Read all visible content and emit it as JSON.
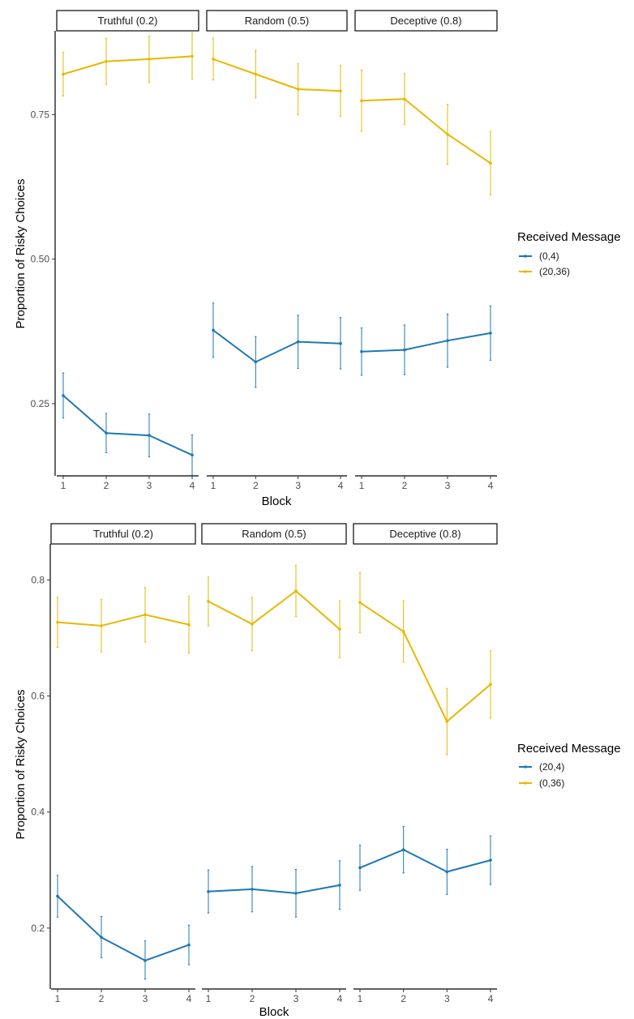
{
  "chart_data": [
    {
      "type": "line",
      "panels": [
        "Truthful (0.2)",
        "Random (0.5)",
        "Deceptive (0.8)"
      ],
      "x": [
        1,
        2,
        3,
        4
      ],
      "xlabel": "Block",
      "ylabel": "Proportion of Risky Choices",
      "yticks": [
        0.25,
        0.5,
        0.75
      ],
      "ytick_labels": [
        "0.25",
        "0.50",
        "0.75"
      ],
      "ylim": [
        0.125,
        0.895
      ],
      "legend_title": "Received Message",
      "legend_position": "right",
      "grid": false,
      "error_bars": true,
      "series": [
        {
          "name": "(0,4)",
          "color": "#1f77b4",
          "panels": [
            {
              "values": [
                0.264,
                0.199,
                0.195,
                0.161
              ],
              "lower": [
                0.225,
                0.165,
                0.158,
                0.126
              ],
              "upper": [
                0.303,
                0.233,
                0.232,
                0.196
              ]
            },
            {
              "values": [
                0.377,
                0.322,
                0.357,
                0.354
              ],
              "lower": [
                0.33,
                0.278,
                0.311,
                0.31
              ],
              "upper": [
                0.424,
                0.366,
                0.403,
                0.399
              ]
            },
            {
              "values": [
                0.34,
                0.343,
                0.359,
                0.372
              ],
              "lower": [
                0.299,
                0.3,
                0.313,
                0.325
              ],
              "upper": [
                0.381,
                0.386,
                0.405,
                0.419
              ]
            }
          ]
        },
        {
          "name": "(20,36)",
          "color": "#e6b800",
          "panels": [
            {
              "values": [
                0.82,
                0.842,
                0.846,
                0.851
              ],
              "lower": [
                0.782,
                0.802,
                0.806,
                0.811
              ],
              "upper": [
                0.858,
                0.882,
                0.886,
                0.891
              ]
            },
            {
              "values": [
                0.846,
                0.82,
                0.794,
                0.791
              ],
              "lower": [
                0.81,
                0.779,
                0.75,
                0.747
              ],
              "upper": [
                0.882,
                0.861,
                0.838,
                0.835
              ]
            },
            {
              "values": [
                0.774,
                0.777,
                0.716,
                0.666
              ],
              "lower": [
                0.721,
                0.733,
                0.664,
                0.611
              ],
              "upper": [
                0.827,
                0.821,
                0.768,
                0.721
              ]
            }
          ]
        }
      ]
    },
    {
      "type": "line",
      "panels": [
        "Truthful (0.2)",
        "Random (0.5)",
        "Deceptive (0.8)"
      ],
      "x": [
        1,
        2,
        3,
        4
      ],
      "xlabel": "Block",
      "ylabel": "Proportion of Risky Choices",
      "yticks": [
        0.2,
        0.4,
        0.6,
        0.8
      ],
      "ytick_labels": [
        "0.2",
        "0.4",
        "0.6",
        "0.8"
      ],
      "ylim": [
        0.095,
        0.862
      ],
      "legend_title": "Received Message",
      "legend_position": "right",
      "grid": false,
      "error_bars": true,
      "series": [
        {
          "name": "(20,4)",
          "color": "#1f77b4",
          "panels": [
            {
              "values": [
                0.255,
                0.184,
                0.144,
                0.171
              ],
              "lower": [
                0.219,
                0.149,
                0.112,
                0.137
              ],
              "upper": [
                0.291,
                0.22,
                0.178,
                0.205
              ]
            },
            {
              "values": [
                0.263,
                0.267,
                0.26,
                0.274
              ],
              "lower": [
                0.226,
                0.228,
                0.219,
                0.232
              ],
              "upper": [
                0.3,
                0.306,
                0.301,
                0.316
              ]
            },
            {
              "values": [
                0.304,
                0.335,
                0.297,
                0.317
              ],
              "lower": [
                0.265,
                0.295,
                0.258,
                0.275
              ],
              "upper": [
                0.343,
                0.375,
                0.336,
                0.359
              ]
            }
          ]
        },
        {
          "name": "(0,36)",
          "color": "#e6b800",
          "panels": [
            {
              "values": [
                0.727,
                0.721,
                0.74,
                0.723
              ],
              "lower": [
                0.684,
                0.676,
                0.693,
                0.674
              ],
              "upper": [
                0.77,
                0.766,
                0.787,
                0.772
              ]
            },
            {
              "values": [
                0.763,
                0.724,
                0.781,
                0.715
              ],
              "lower": [
                0.721,
                0.678,
                0.737,
                0.666
              ],
              "upper": [
                0.805,
                0.77,
                0.825,
                0.764
              ]
            },
            {
              "values": [
                0.761,
                0.711,
                0.556,
                0.62
              ],
              "lower": [
                0.709,
                0.658,
                0.499,
                0.562
              ],
              "upper": [
                0.813,
                0.764,
                0.613,
                0.678
              ]
            }
          ]
        }
      ]
    }
  ]
}
